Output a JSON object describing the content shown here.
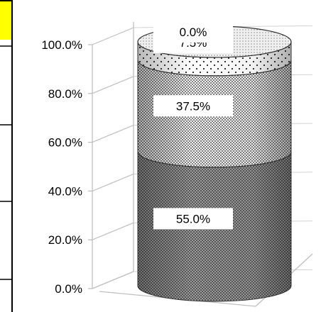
{
  "chart_data": {
    "type": "bar",
    "style": "3d-stacked-cylinder",
    "title": "",
    "xlabel": "",
    "ylabel": "",
    "ylim": [
      0,
      100
    ],
    "y_ticks": [
      "0.0%",
      "20.0%",
      "40.0%",
      "60.0%",
      "80.0%",
      "100.0%"
    ],
    "y_tick_values": [
      0,
      20,
      40,
      60,
      80,
      100
    ],
    "grid": false,
    "legend": "none",
    "series": [
      {
        "value": 55.0,
        "label": "55.0%",
        "pattern": "dark-dots",
        "color": "#6e6e6e"
      },
      {
        "value": 37.5,
        "label": "37.5%",
        "pattern": "dense-dots",
        "color": "#e6e6e6"
      },
      {
        "value": 7.5,
        "label": "7.5%",
        "pattern": "sparse-dots",
        "color": "#ffffff"
      },
      {
        "value": 0.0,
        "label": "0.0%",
        "pattern": "fine-dots",
        "color": "#d9d9d9"
      }
    ]
  }
}
